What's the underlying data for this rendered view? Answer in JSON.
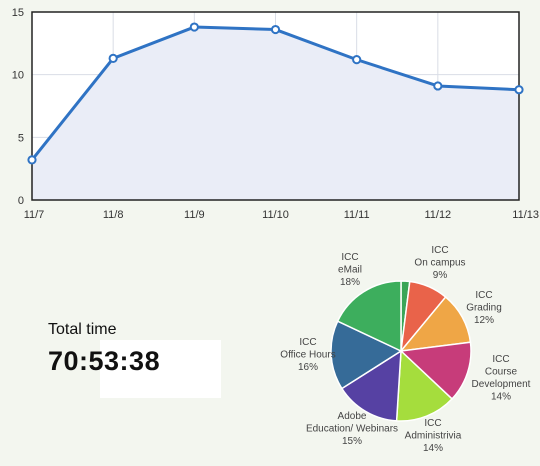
{
  "chart_data": [
    {
      "type": "line",
      "categories": [
        "11/7",
        "11/8",
        "11/9",
        "11/10",
        "11/11",
        "11/12",
        "11/13"
      ],
      "values": [
        3.2,
        11.3,
        13.8,
        13.6,
        11.2,
        9.1,
        8.8
      ],
      "yticks": [
        "0",
        "5",
        "10",
        "15"
      ],
      "ylim": [
        0,
        15
      ],
      "grid": true,
      "colors": {
        "line": "#2f73c4",
        "fill": "#eaedf7",
        "marker_fill": "#ffffff",
        "grid": "#d9dde6",
        "frame": "#222222"
      }
    },
    {
      "type": "pie",
      "slices": [
        {
          "label": [
            "",
            "",
            ""
          ],
          "value": 2,
          "color": "#3aa558"
        },
        {
          "label": [
            "ICC",
            "On campus",
            "9%"
          ],
          "value": 9,
          "color": "#e9634a"
        },
        {
          "label": [
            "ICC",
            "Grading",
            "12%"
          ],
          "value": 12,
          "color": "#efa646"
        },
        {
          "label": [
            "ICC",
            "Course",
            "Development",
            "14%"
          ],
          "value": 14,
          "color": "#c73c7a"
        },
        {
          "label": [
            "ICC",
            "Administrivia",
            "14%"
          ],
          "value": 14,
          "color": "#a5dd3d"
        },
        {
          "label": [
            "Adobe",
            "Education/ Webinars",
            "15%"
          ],
          "value": 15,
          "color": "#5641a3"
        },
        {
          "label": [
            "ICC",
            "Office Hours",
            "16%"
          ],
          "value": 16,
          "color": "#366b98"
        },
        {
          "label": [
            "ICC",
            "eMail",
            "18%"
          ],
          "value": 18,
          "color": "#3dae5d"
        }
      ]
    }
  ],
  "total": {
    "label": "Total time",
    "value": "70:53:38"
  }
}
